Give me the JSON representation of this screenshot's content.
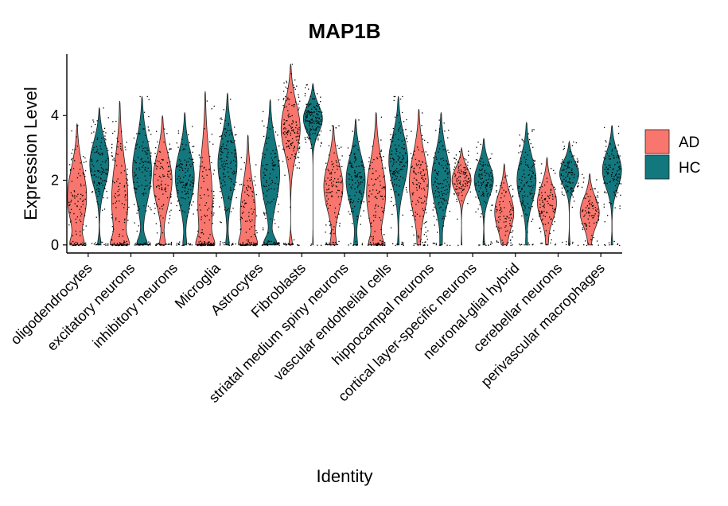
{
  "chart_data": {
    "type": "violin",
    "title": "MAP1B",
    "xlabel": "Identity",
    "ylabel": "Expression Level",
    "ylim": [
      -0.25,
      5.9
    ],
    "yticks": [
      0,
      2,
      4
    ],
    "legend_position": "right",
    "colors": {
      "AD": "#F8766D",
      "HC": "#13777E"
    },
    "categories": [
      "oligodendrocytes",
      "excitatory neurons",
      "inhibitory neurons",
      "Microglia",
      "Astrocytes",
      "Fibroblasts",
      "striatal medium spiny neurons",
      "vascular endothelial cells",
      "hippocampal neurons",
      "cortical layer-specific neurons",
      "neuronal-glial hybrid",
      "cerebellar neurons",
      "perivascular macrophages"
    ],
    "series": [
      {
        "name": "AD",
        "max": [
          3.75,
          4.45,
          4.0,
          4.75,
          3.4,
          5.6,
          3.7,
          4.1,
          4.2,
          3.0,
          2.5,
          2.7,
          2.2
        ],
        "median": [
          1.5,
          1.4,
          2.0,
          1.3,
          1.0,
          3.6,
          1.8,
          1.6,
          1.9,
          2.0,
          1.0,
          1.3,
          1.0
        ],
        "zero_fraction": [
          0.25,
          0.3,
          0.15,
          0.3,
          0.3,
          0.1,
          0.15,
          0.25,
          0.05,
          0.02,
          0.05,
          0.05,
          0.05
        ]
      },
      {
        "name": "HC",
        "max": [
          4.25,
          4.6,
          4.1,
          4.7,
          4.5,
          5.0,
          3.9,
          4.6,
          4.1,
          3.3,
          3.8,
          3.2,
          3.7
        ],
        "median": [
          2.5,
          2.3,
          2.1,
          2.5,
          2.2,
          3.9,
          2.0,
          2.6,
          2.0,
          2.0,
          2.0,
          2.2,
          2.3
        ],
        "zero_fraction": [
          0.1,
          0.25,
          0.1,
          0.1,
          0.3,
          0.02,
          0.1,
          0.05,
          0.05,
          0.05,
          0.05,
          0.05,
          0.05
        ]
      }
    ]
  }
}
